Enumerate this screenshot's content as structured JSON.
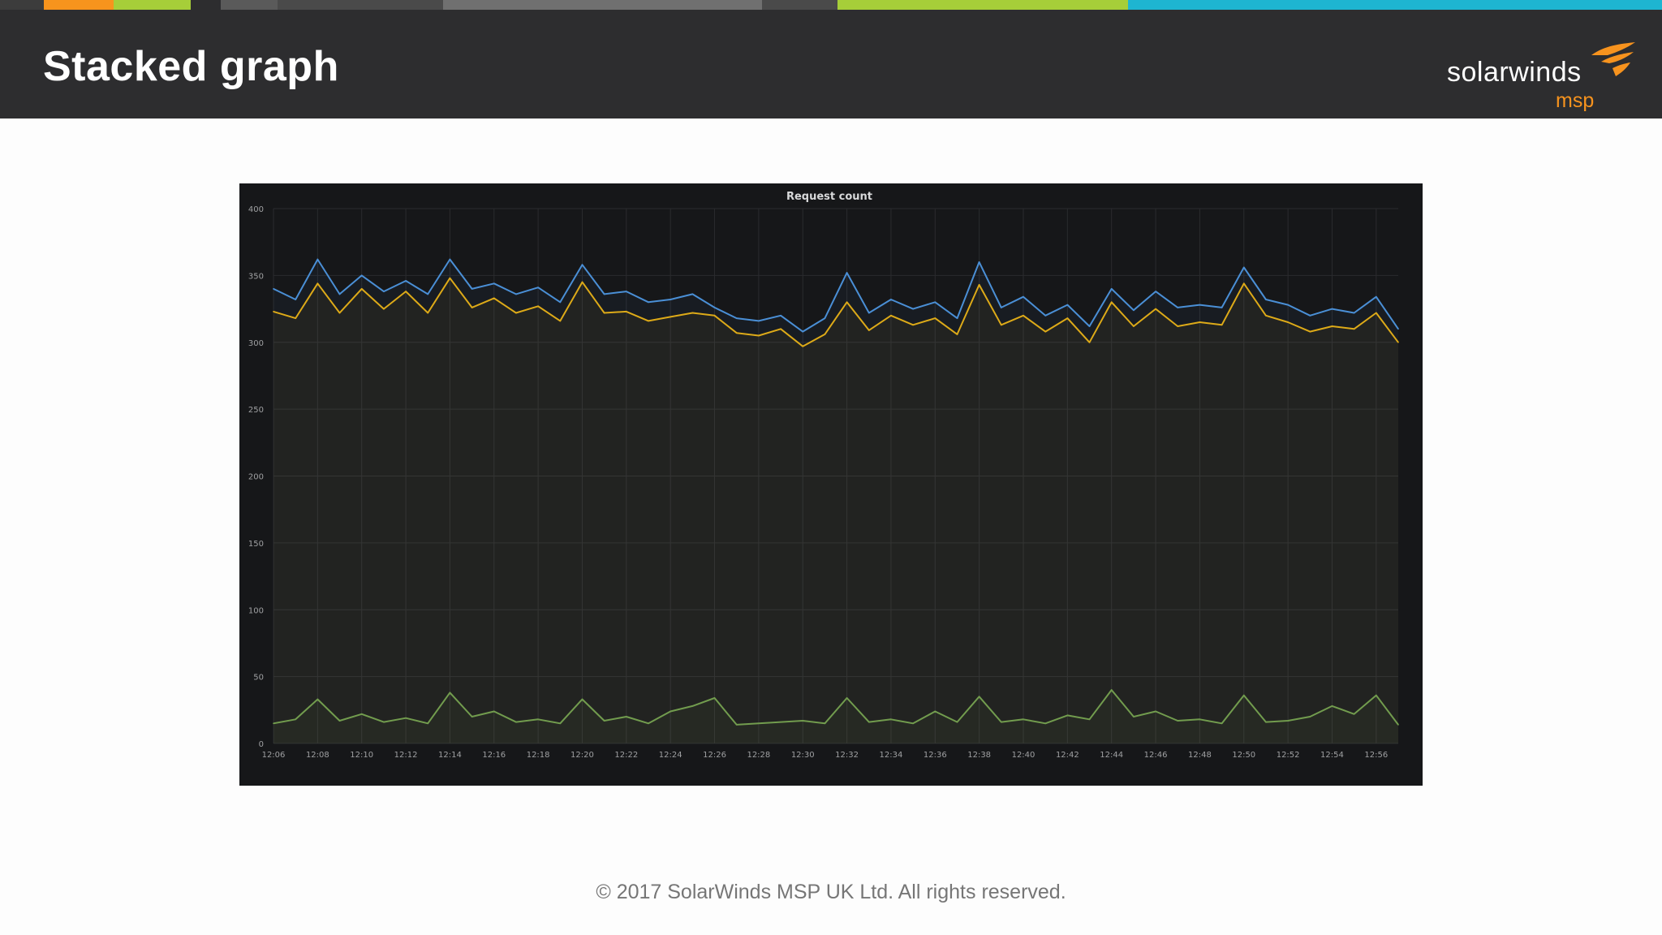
{
  "slide": {
    "title": "Stacked graph",
    "footer": "© 2017 SolarWinds MSP UK Ltd.  All rights reserved.",
    "accent_strip_colors": [
      "#3c3c3c",
      "#f7941d",
      "#a6ce39",
      "#2d2d2f",
      "#5a5a5a",
      "#4a4a4a",
      "#707070",
      "#4a4a4a",
      "#a6ce39",
      "#1eb5d1"
    ]
  },
  "logo": {
    "wordmark": "solarwinds",
    "sub": "msp",
    "icon": "solarwinds-flare-icon",
    "brand_color": "#f7931e"
  },
  "chart_data": {
    "type": "area",
    "title": "Request count",
    "ylim": [
      0,
      400
    ],
    "y_ticks": [
      "0",
      "50",
      "100",
      "150",
      "200",
      "250",
      "300",
      "350",
      "400"
    ],
    "x_ticks": [
      "12:06",
      "12:08",
      "12:10",
      "12:12",
      "12:14",
      "12:16",
      "12:18",
      "12:20",
      "12:22",
      "12:24",
      "12:26",
      "12:28",
      "12:30",
      "12:32",
      "12:34",
      "12:36",
      "12:38",
      "12:40",
      "12:42",
      "12:44",
      "12:46",
      "12:48",
      "12:50",
      "12:52",
      "12:54",
      "12:56"
    ],
    "grid": true,
    "x": [
      "12:06",
      "12:07",
      "12:08",
      "12:09",
      "12:10",
      "12:11",
      "12:12",
      "12:13",
      "12:14",
      "12:15",
      "12:16",
      "12:17",
      "12:18",
      "12:19",
      "12:20",
      "12:21",
      "12:22",
      "12:23",
      "12:24",
      "12:25",
      "12:26",
      "12:27",
      "12:28",
      "12:29",
      "12:30",
      "12:31",
      "12:32",
      "12:33",
      "12:34",
      "12:35",
      "12:36",
      "12:37",
      "12:38",
      "12:39",
      "12:40",
      "12:41",
      "12:42",
      "12:43",
      "12:44",
      "12:45",
      "12:46",
      "12:47",
      "12:48",
      "12:49",
      "12:50",
      "12:51",
      "12:52",
      "12:53",
      "12:54",
      "12:55",
      "12:56",
      "12:57"
    ],
    "series": [
      {
        "color": "#6e9e4a",
        "values": [
          15,
          18,
          33,
          17,
          22,
          16,
          19,
          15,
          38,
          20,
          24,
          16,
          18,
          15,
          33,
          17,
          20,
          15,
          24,
          28,
          34,
          14,
          15,
          16,
          17,
          15,
          34,
          16,
          18,
          15,
          24,
          16,
          35,
          16,
          18,
          15,
          21,
          18,
          40,
          20,
          24,
          17,
          18,
          15,
          36,
          16,
          17,
          20,
          28,
          22,
          36,
          14
        ]
      },
      {
        "color": "#e5ac0e",
        "values": [
          323,
          318,
          344,
          322,
          340,
          325,
          338,
          322,
          348,
          326,
          333,
          322,
          327,
          316,
          345,
          322,
          323,
          316,
          319,
          322,
          320,
          307,
          305,
          310,
          297,
          306,
          330,
          309,
          320,
          313,
          318,
          306,
          343,
          313,
          320,
          308,
          318,
          300,
          330,
          312,
          325,
          312,
          315,
          313,
          344,
          320,
          315,
          308,
          312,
          310,
          322,
          300
        ]
      },
      {
        "color": "#4a8fd6",
        "values": [
          340,
          332,
          362,
          336,
          350,
          338,
          346,
          336,
          362,
          340,
          344,
          336,
          341,
          330,
          358,
          336,
          338,
          330,
          332,
          336,
          326,
          318,
          316,
          320,
          308,
          318,
          352,
          322,
          332,
          325,
          330,
          318,
          360,
          326,
          334,
          320,
          328,
          312,
          340,
          324,
          338,
          326,
          328,
          326,
          356,
          332,
          328,
          320,
          325,
          322,
          334,
          310
        ]
      }
    ]
  }
}
